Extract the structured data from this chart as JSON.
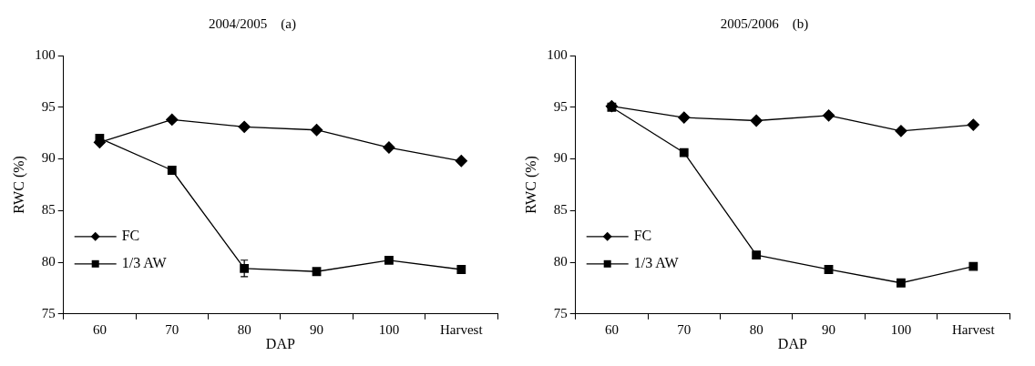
{
  "chart_data": [
    {
      "type": "line",
      "title": "2004/2005    (a)",
      "xlabel": "DAP",
      "ylabel": "RWC (%)",
      "categories": [
        "60",
        "70",
        "80",
        "90",
        "100",
        "Harvest"
      ],
      "ylim": [
        75,
        100
      ],
      "yticks": [
        75,
        80,
        85,
        90,
        95,
        100
      ],
      "grid": false,
      "legend": "bottom left",
      "line_style": "solid",
      "series": [
        {
          "name": "FC",
          "color": "#000000",
          "marker": "diamond",
          "values": [
            91.6,
            93.8,
            93.1,
            92.8,
            91.1,
            89.8
          ]
        },
        {
          "name": "1/3 AW",
          "color": "#000000",
          "marker": "square",
          "values": [
            92.0,
            88.9,
            79.4,
            79.1,
            80.2,
            79.3
          ],
          "errors": [
            null,
            null,
            0.8,
            null,
            null,
            null
          ]
        }
      ]
    },
    {
      "type": "line",
      "title": "2005/2006    (b)",
      "xlabel": "DAP",
      "ylabel": "RWC (%)",
      "categories": [
        "60",
        "70",
        "80",
        "90",
        "100",
        "Harvest"
      ],
      "ylim": [
        75,
        100
      ],
      "yticks": [
        75,
        80,
        85,
        90,
        95,
        100
      ],
      "grid": false,
      "legend": "bottom left",
      "line_style": "solid",
      "series": [
        {
          "name": "FC",
          "color": "#000000",
          "marker": "diamond",
          "values": [
            95.1,
            94.0,
            93.7,
            94.2,
            92.7,
            93.3
          ]
        },
        {
          "name": "1/3 AW",
          "color": "#000000",
          "marker": "square",
          "values": [
            95.0,
            90.6,
            80.7,
            79.3,
            78.0,
            79.6
          ]
        }
      ]
    }
  ]
}
